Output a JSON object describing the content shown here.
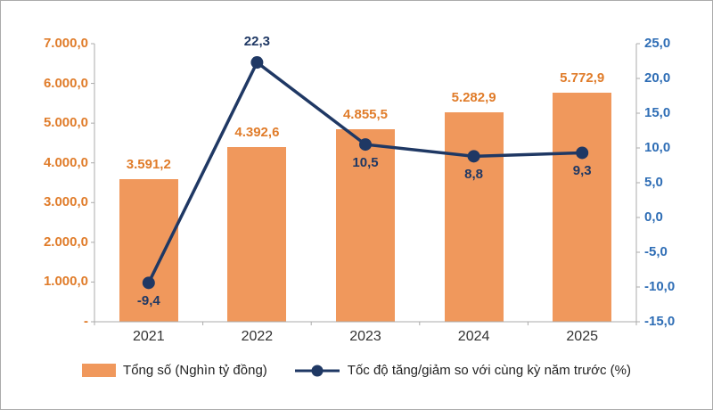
{
  "chart_data": {
    "type": "combo",
    "categories": [
      "2021",
      "2022",
      "2023",
      "2024",
      "2025"
    ],
    "series": [
      {
        "name": "Tổng số (Nghìn tỷ đồng)",
        "type": "bar",
        "axis": "left",
        "values": [
          3591.2,
          4392.6,
          4855.5,
          5282.9,
          5772.9
        ],
        "data_labels": [
          "3.591,2",
          "4.392,6",
          "4.855,5",
          "5.282,9",
          "5.772,9"
        ],
        "color": "#F0985C",
        "label_color": "#E07C2A"
      },
      {
        "name": "Tốc độ tăng/giảm so với cùng kỳ năm trước (%)",
        "type": "line",
        "axis": "right",
        "values": [
          -9.4,
          22.3,
          10.5,
          8.8,
          9.3
        ],
        "data_labels": [
          "-9,4",
          "22,3",
          "10,5",
          "8,8",
          "9,3"
        ],
        "label_positions": [
          "below",
          "above",
          "below",
          "below",
          "below"
        ],
        "color": "#1F3864",
        "label_color": "#1F3864"
      }
    ],
    "left_axis": {
      "min": 0,
      "max": 7000,
      "tick_labels": [
        "7.000,0",
        "6.000,0",
        "5.000,0",
        "4.000,0",
        "3.000,0",
        "2.000,0",
        "1.000,0",
        "-"
      ],
      "color": "#E07C2A"
    },
    "right_axis": {
      "min": -15,
      "max": 25,
      "tick_labels": [
        "25,0",
        "20,0",
        "15,0",
        "10,0",
        "5,0",
        "0,0",
        "-5,0",
        "-10,0",
        "-15,0"
      ],
      "color": "#2E6DB5"
    },
    "x_axis": {
      "tick_labels": [
        "2021",
        "2022",
        "2023",
        "2024",
        "2025"
      ],
      "color": "#333333"
    },
    "legend_position": "bottom",
    "grid": false
  }
}
